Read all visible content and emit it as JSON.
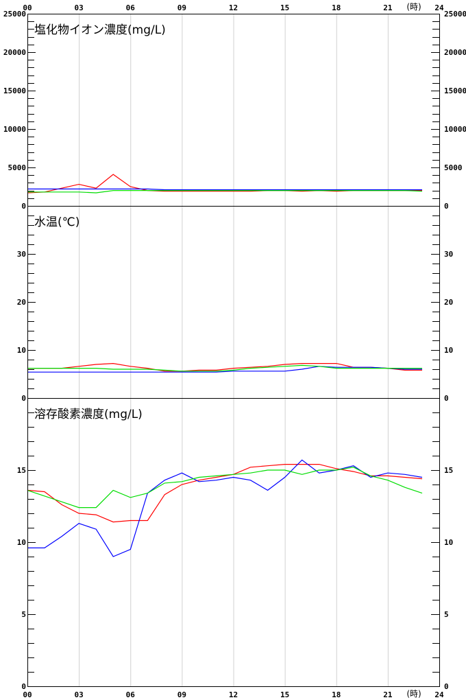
{
  "x_axis": {
    "ticks": [
      "00",
      "03",
      "06",
      "09",
      "12",
      "15",
      "18",
      "21",
      "24"
    ],
    "unit": "(時)",
    "range": [
      0,
      24
    ]
  },
  "chart_data": [
    {
      "type": "line",
      "title": "塩化物イオン濃度(mg/L)",
      "ylim": [
        0,
        25000
      ],
      "yticks": [
        "0",
        "5000",
        "10000",
        "15000",
        "20000",
        "25000"
      ],
      "x": [
        0,
        1,
        2,
        3,
        4,
        5,
        6,
        7,
        8,
        9,
        10,
        11,
        12,
        13,
        14,
        15,
        16,
        17,
        18,
        19,
        20,
        21,
        22,
        23
      ],
      "series": [
        {
          "color": "#ff0000",
          "values": [
            1700,
            1800,
            2300,
            2800,
            2300,
            4100,
            2500,
            2000,
            1900,
            1900,
            1900,
            1900,
            1900,
            1900,
            2000,
            2000,
            1900,
            2000,
            1900,
            2000,
            2000,
            2000,
            2000,
            2000
          ]
        },
        {
          "color": "#0000ff",
          "values": [
            2200,
            2200,
            2200,
            2200,
            2200,
            2200,
            2200,
            2200,
            2100,
            2100,
            2100,
            2100,
            2100,
            2100,
            2100,
            2100,
            2100,
            2100,
            2100,
            2100,
            2100,
            2100,
            2100,
            2100
          ]
        },
        {
          "color": "#00dd00",
          "values": [
            1800,
            1800,
            1800,
            1800,
            1700,
            2000,
            2000,
            2000,
            2000,
            2000,
            2000,
            2000,
            2000,
            2000,
            2000,
            2000,
            2000,
            2000,
            2000,
            2000,
            2000,
            2000,
            2000,
            1900
          ]
        }
      ]
    },
    {
      "type": "line",
      "title": "水温(℃)",
      "ylim": [
        0,
        40
      ],
      "yticks": [
        "0",
        "10",
        "20",
        "30"
      ],
      "x": [
        0,
        1,
        2,
        3,
        4,
        5,
        6,
        7,
        8,
        9,
        10,
        11,
        12,
        13,
        14,
        15,
        16,
        17,
        18,
        19,
        20,
        21,
        22,
        23
      ],
      "series": [
        {
          "color": "#ff0000",
          "values": [
            6.2,
            6.2,
            6.2,
            6.6,
            7.0,
            7.2,
            6.6,
            6.2,
            5.6,
            5.6,
            5.8,
            5.8,
            6.2,
            6.4,
            6.6,
            7.0,
            7.2,
            7.2,
            7.2,
            6.4,
            6.4,
            6.2,
            5.8,
            5.8
          ]
        },
        {
          "color": "#0000ff",
          "values": [
            5.4,
            5.4,
            5.4,
            5.4,
            5.4,
            5.4,
            5.4,
            5.4,
            5.4,
            5.4,
            5.4,
            5.4,
            5.6,
            5.6,
            5.6,
            5.6,
            6.0,
            6.6,
            6.4,
            6.4,
            6.4,
            6.2,
            6.0,
            6.0
          ]
        },
        {
          "color": "#00dd00",
          "values": [
            6.2,
            6.2,
            6.2,
            6.2,
            6.2,
            6.0,
            6.0,
            6.0,
            5.8,
            5.6,
            5.6,
            5.6,
            5.8,
            6.2,
            6.4,
            6.6,
            6.8,
            6.6,
            6.2,
            6.2,
            6.2,
            6.2,
            6.2,
            6.2
          ]
        }
      ]
    },
    {
      "type": "line",
      "title": "溶存酸素濃度(mg/L)",
      "ylim": [
        0,
        20
      ],
      "yticks": [
        "0",
        "5",
        "10",
        "15"
      ],
      "x": [
        0,
        1,
        2,
        3,
        4,
        5,
        6,
        7,
        8,
        9,
        10,
        11,
        12,
        13,
        14,
        15,
        16,
        17,
        18,
        19,
        20,
        21,
        22,
        23
      ],
      "series": [
        {
          "color": "#ff0000",
          "values": [
            13.6,
            13.5,
            12.6,
            12.0,
            11.9,
            11.4,
            11.5,
            11.5,
            13.3,
            14.0,
            14.3,
            14.5,
            14.7,
            15.2,
            15.3,
            15.4,
            15.4,
            15.4,
            15.1,
            14.9,
            14.6,
            14.6,
            14.5,
            14.4
          ]
        },
        {
          "color": "#0000ff",
          "values": [
            9.6,
            9.6,
            10.4,
            11.3,
            10.9,
            9.0,
            9.5,
            13.4,
            14.3,
            14.8,
            14.2,
            14.3,
            14.5,
            14.3,
            13.6,
            14.5,
            15.7,
            14.8,
            15.0,
            15.3,
            14.5,
            14.8,
            14.7,
            14.5
          ]
        },
        {
          "color": "#00dd00",
          "values": [
            13.6,
            13.2,
            12.8,
            12.4,
            12.4,
            13.6,
            13.1,
            13.4,
            14.1,
            14.2,
            14.5,
            14.6,
            14.7,
            14.8,
            15.0,
            15.0,
            14.7,
            15.0,
            15.0,
            15.2,
            14.6,
            14.3,
            13.8,
            13.4
          ]
        }
      ]
    }
  ]
}
